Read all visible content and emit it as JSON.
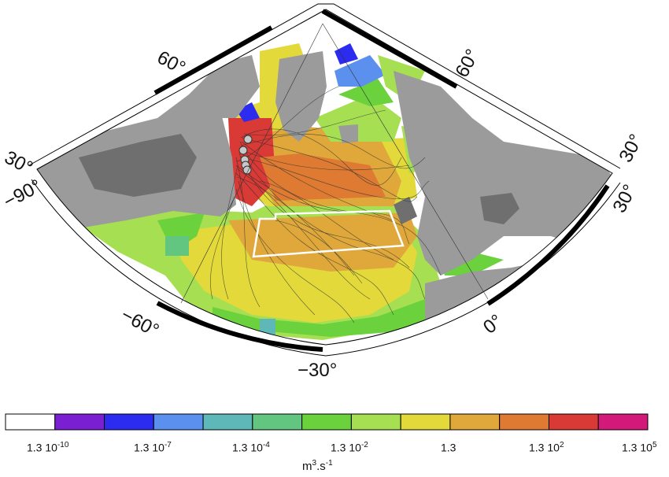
{
  "map": {
    "lon_labels": [
      "−90°",
      "−60°",
      "−30°",
      "0°",
      "30°"
    ],
    "lat_labels": [
      "30°",
      "60°",
      "60°",
      "30°"
    ],
    "colors": {
      "ocean_white": "#ffffff",
      "land": "#9b9b9b",
      "land_dark": "#6f6f6f",
      "frame": "#000000",
      "box": "#ffffff",
      "tracks": "#1f2f2f"
    },
    "markers": {
      "count": 5,
      "color": "#c8c8c8"
    }
  },
  "colorbar": {
    "colors": [
      "#ffffff",
      "#7a1fd1",
      "#2c2cf0",
      "#5b90ee",
      "#5fb8b8",
      "#63c680",
      "#6bd13c",
      "#a6df52",
      "#e3d93a",
      "#e0a83a",
      "#de7a32",
      "#d93a36",
      "#d3197a"
    ],
    "ticks": [
      {
        "base": "1.3 10",
        "exp": "-10"
      },
      {
        "base": "1.3 10",
        "exp": "-7"
      },
      {
        "base": "1.3 10",
        "exp": "-4"
      },
      {
        "base": "1.3 10",
        "exp": "-2"
      },
      {
        "base": "1.3",
        "exp": ""
      },
      {
        "base": "1.3 10",
        "exp": "2"
      },
      {
        "base": "1.3 10",
        "exp": "5"
      }
    ],
    "units_base": "m",
    "units_exp1": "3",
    "units_mid": ".s",
    "units_exp2": "-1"
  }
}
